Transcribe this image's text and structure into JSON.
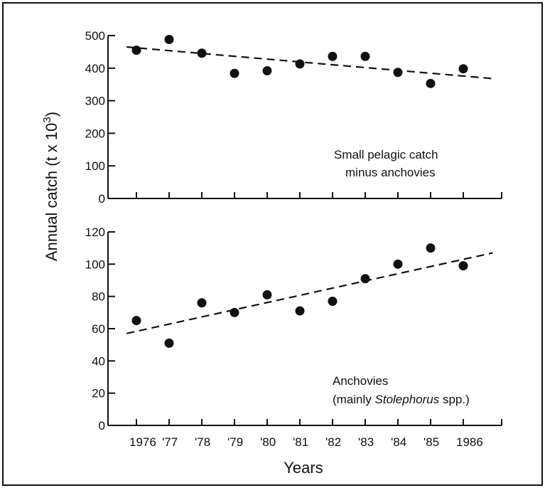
{
  "chart_data": [
    {
      "type": "scatter",
      "ylim": [
        0,
        500
      ],
      "yticks": [
        "0",
        "100",
        "200",
        "300",
        "400",
        "500"
      ],
      "ytick_values": [
        0,
        100,
        200,
        300,
        400,
        500
      ],
      "x": [
        1976,
        1977,
        1978,
        1979,
        1980,
        1981,
        1982,
        1983,
        1984,
        1985,
        1986
      ],
      "values": [
        455,
        488,
        446,
        384,
        392,
        413,
        436,
        436,
        387,
        353,
        398
      ],
      "trend": {
        "x": [
          1975.7,
          1986.9
        ],
        "y": [
          465,
          368
        ]
      },
      "annotation": [
        "Small pelagic catch",
        "minus anchovies"
      ],
      "grid": false
    },
    {
      "type": "scatter",
      "ylim": [
        0,
        120
      ],
      "yticks": [
        "0",
        "20",
        "40",
        "60",
        "80",
        "100",
        "120"
      ],
      "ytick_values": [
        0,
        20,
        40,
        60,
        80,
        100,
        120
      ],
      "x": [
        1976,
        1977,
        1978,
        1979,
        1980,
        1981,
        1982,
        1983,
        1984,
        1985,
        1986
      ],
      "values": [
        65,
        51,
        76,
        70,
        81,
        71,
        77,
        91,
        100,
        110,
        99
      ],
      "trend": {
        "x": [
          1975.7,
          1986.9
        ],
        "y": [
          57,
          107
        ]
      },
      "annotation_line1": "Anchovies",
      "annotation_line2": {
        "prefix": "(mainly ",
        "italic": "Stolephorus",
        "suffix": " spp.)"
      },
      "grid": false
    }
  ],
  "shared": {
    "ylabel": "Annual catch (t x 10",
    "ylabel_exponent": "3",
    "ylabel_close": ")",
    "xlabel": "Years",
    "xtick_labels": [
      "1976",
      "'77",
      "'78",
      "'79",
      "'80",
      "'81",
      "'82",
      "'83",
      "'84",
      "'85",
      "1986"
    ]
  }
}
